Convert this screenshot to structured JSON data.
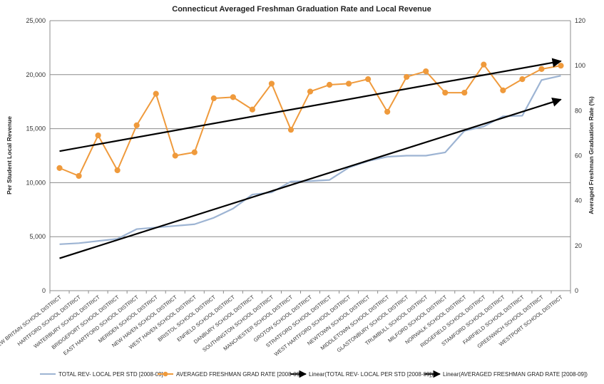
{
  "chart_data": {
    "type": "line",
    "title": "Connecticut Averaged Freshman Graduation Rate and Local Revenue",
    "ylabel_left": "Per Student Local Revenue",
    "ylabel_right": "Averaged Freshman Graduation Rate (%)",
    "ylim_left": [
      0,
      25000
    ],
    "ylim_right": [
      0,
      120
    ],
    "yticks_left": [
      "0",
      "5,000",
      "10,000",
      "15,000",
      "20,000",
      "25,000"
    ],
    "yticks_right": [
      "0",
      "20",
      "40",
      "60",
      "80",
      "100",
      "120"
    ],
    "grid": true,
    "legend_position": "bottom",
    "categories": [
      "NEW BRITAIN SCHOOL DISTRICT",
      "HARTFORD SCHOOL DISTRICT",
      "WATERBURY SCHOOL DISTRICT",
      "BRIDGEPORT SCHOOL DISTRICT",
      "EAST HARTFORD SCHOOL DISTRICT",
      "MERIDEN SCHOOL DISTRICT",
      "NEW HAVEN SCHOOL DISTRICT",
      "WEST HAVEN SCHOOL DISTRICT",
      "BRISTOL SCHOOL DISTRICT",
      "ENFIELD SCHOOL DISTRICT",
      "DANBURY SCHOOL DISTRICT",
      "SOUTHINGTON SCHOOL DISTRICT",
      "MANCHESTER SCHOOL DISTRICT",
      "GROTON SCHOOL DISTRICT",
      "STRATFORD SCHOOL DISTRICT",
      "WEST HARTFORD SCHOOL DISTRICT",
      "NEWTOWN SCHOOL DISTRICT",
      "MIDDLETOWN SCHOOL DISTRICT",
      "GLASTONBURY SCHOOL DISTRICT",
      "TRUMBULL SCHOOL DISTRICT",
      "MILFORD SCHOOL DISTRICT",
      "NORWALK SCHOOL DISTRICT",
      "RIDGEFIELD SCHOOL DISTRICT",
      "STAMFORD SCHOOL DISTRICT",
      "FAIRFIELD SCHOOL DISTRICT",
      "GREENWICH SCHOOL DISTRICT",
      "WESTPORT SCHOOL DISTRICT"
    ],
    "series": [
      {
        "name": "TOTAL REV- LOCAL PER STD  [2008-09]",
        "axis": "left",
        "color": "#9db4d3",
        "marker": false,
        "values": [
          4300,
          4400,
          4600,
          4800,
          5700,
          5850,
          6000,
          6150,
          6750,
          7600,
          8900,
          9100,
          10100,
          10150,
          10250,
          11400,
          12000,
          12400,
          12500,
          12500,
          12800,
          14800,
          15200,
          16150,
          16200,
          19500,
          19900
        ]
      },
      {
        "name": "AVERAGED FRESHMAN GRAD RATE [2008-09]",
        "axis": "right",
        "color": "#ef9a3c",
        "marker": true,
        "values": [
          54.5,
          51,
          69,
          53.5,
          73.5,
          87.5,
          60,
          61.5,
          85.5,
          86,
          80.5,
          92,
          71.5,
          88.5,
          91.5,
          92,
          94,
          79.5,
          95,
          97.5,
          88,
          88,
          100.5,
          89,
          94,
          98.5,
          100
        ]
      },
      {
        "name": "Linear(TOTAL REV- LOCAL PER STD  [2008-09])",
        "axis": "left",
        "type": "trendline",
        "color": "#000000",
        "start": 3000,
        "end": 17700
      },
      {
        "name": "Linear(AVERAGED FRESHMAN GRAD RATE [2008-09])",
        "axis": "right",
        "type": "trendline",
        "color": "#000000",
        "start": 62,
        "end": 102
      }
    ]
  }
}
